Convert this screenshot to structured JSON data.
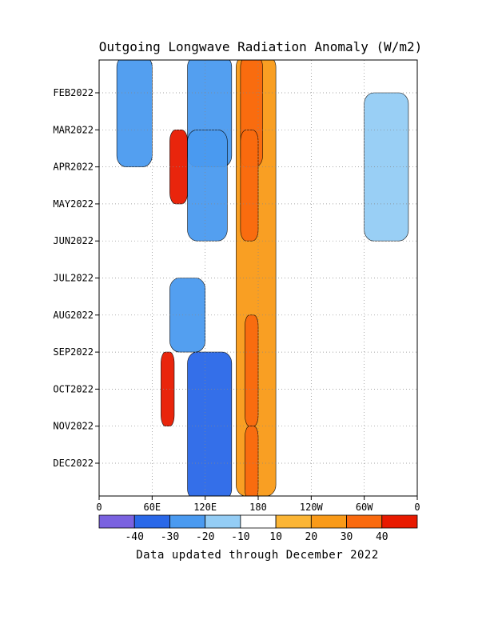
{
  "chart_data": {
    "type": "heatmap",
    "title": "Outgoing Longwave Radiation Anomaly (W/m2)",
    "xlabel": "",
    "ylabel": "",
    "x_ticks": [
      "0",
      "60E",
      "120E",
      "180",
      "120W",
      "60W",
      "0"
    ],
    "x_range": [
      0,
      360
    ],
    "y_ticks": [
      "FEB2022",
      "MAR2022",
      "APR2022",
      "MAY2022",
      "JUN2022",
      "JUL2022",
      "AUG2022",
      "SEP2022",
      "OCT2022",
      "NOV2022",
      "DEC2022"
    ],
    "y_range": [
      "JAN2022",
      "DEC2022"
    ],
    "grid": true,
    "colorbar": {
      "labels": [
        "-40",
        "-30",
        "-20",
        "-10",
        "10",
        "20",
        "30",
        "40"
      ],
      "colors": [
        "#7a62e0",
        "#2a68e8",
        "#4a9af0",
        "#94cdf5",
        "#ffffff",
        "#fbb535",
        "#f99a18",
        "#fa6a0e",
        "#e81a00"
      ]
    },
    "anomaly_bands": [
      {
        "lon": [
          155,
          200
        ],
        "time": [
          "JAN2022",
          "DEC2022"
        ],
        "value": 20
      },
      {
        "lon": [
          160,
          185
        ],
        "time": [
          "JAN2022",
          "MAR2022"
        ],
        "value": 30
      },
      {
        "lon": [
          160,
          180
        ],
        "time": [
          "MAR2022",
          "MAY2022"
        ],
        "value": 30
      },
      {
        "lon": [
          165,
          180
        ],
        "time": [
          "AUG2022",
          "OCT2022"
        ],
        "value": 30
      },
      {
        "lon": [
          165,
          180
        ],
        "time": [
          "NOV2022",
          "DEC2022"
        ],
        "value": 30
      },
      {
        "lon": [
          80,
          100
        ],
        "time": [
          "MAR2022",
          "APR2022"
        ],
        "value": 40
      },
      {
        "lon": [
          70,
          85
        ],
        "time": [
          "SEP2022",
          "OCT2022"
        ],
        "value": 40
      },
      {
        "lon": [
          20,
          60
        ],
        "time": [
          "JAN2022",
          "MAR2022"
        ],
        "value": -20
      },
      {
        "lon": [
          100,
          150
        ],
        "time": [
          "JAN2022",
          "MAR2022"
        ],
        "value": -20
      },
      {
        "lon": [
          100,
          145
        ],
        "time": [
          "MAR2022",
          "MAY2022"
        ],
        "value": -20
      },
      {
        "lon": [
          80,
          120
        ],
        "time": [
          "JUL2022",
          "AUG2022"
        ],
        "value": -20
      },
      {
        "lon": [
          100,
          150
        ],
        "time": [
          "SEP2022",
          "DEC2022"
        ],
        "value": -30
      },
      {
        "lon": [
          300,
          350
        ],
        "time": [
          "FEB2022",
          "MAY2022"
        ],
        "value": -10
      }
    ]
  },
  "footer": {
    "note": "Data updated through December 2022"
  }
}
